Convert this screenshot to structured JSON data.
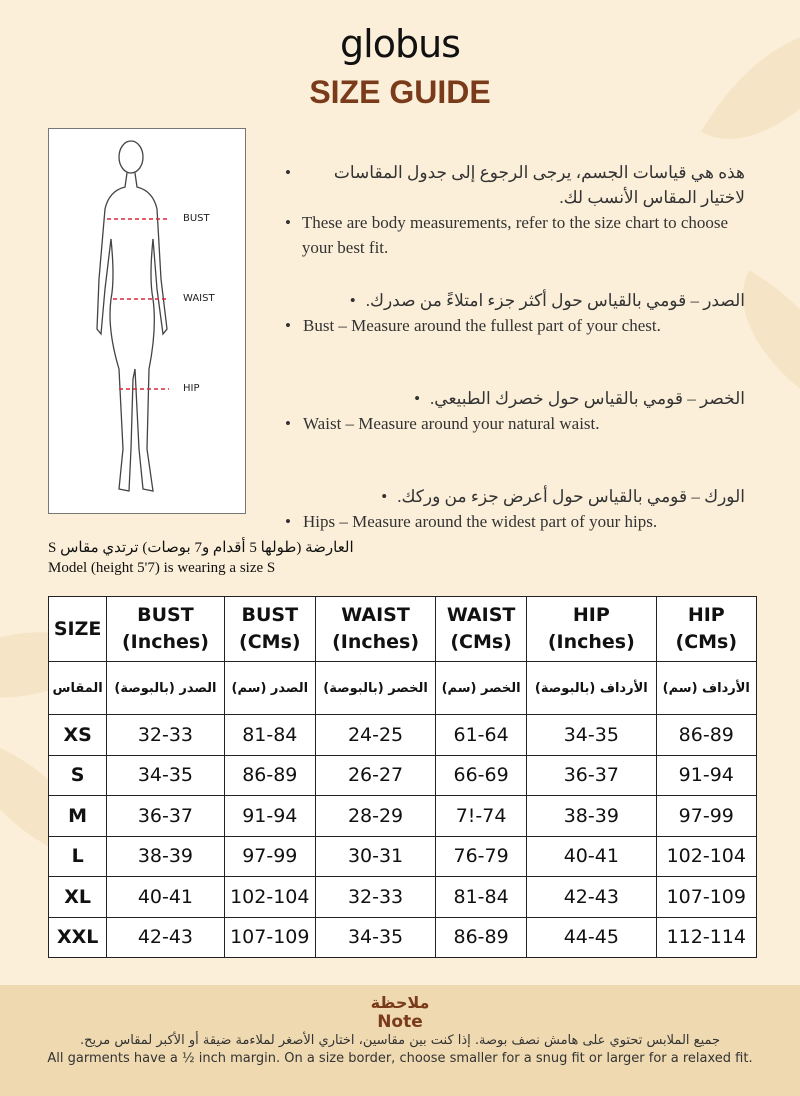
{
  "brand": "globus",
  "title": "SIZE GUIDE",
  "figure": {
    "labels": [
      "BUST",
      "WAIST",
      "HIP"
    ],
    "line_color": "#d9263b"
  },
  "bullets": [
    {
      "ar": "هذه هي قياسات الجسم، يرجى الرجوع إلى جدول المقاسات لاختيار المقاس الأنسب لك.",
      "en": "These are body measurements, refer to the size chart to choose your best fit."
    },
    {
      "ar": "الصدر – قومي بالقياس حول أكثر جزء امتلاءً من صدرك.",
      "en": "Bust – Measure around the fullest part of your chest."
    },
    {
      "ar": "الخصر – قومي بالقياس حول خصرك الطبيعي.",
      "en": "Waist – Measure around your natural waist."
    },
    {
      "ar": "الورك – قومي بالقياس حول أعرض جزء من وركك.",
      "en": "Hips – Measure around the widest part of your hips."
    }
  ],
  "model": {
    "ar": "العارضة (طولها 5 أقدام و7 بوصات) ترتدي مقاس S",
    "en": "Model (height 5'7) is wearing a size S"
  },
  "table": {
    "headers": [
      [
        "SIZE",
        ""
      ],
      [
        "BUST",
        "(Inches)"
      ],
      [
        "BUST",
        "(CMs)"
      ],
      [
        "WAIST",
        "(Inches)"
      ],
      [
        "WAIST",
        "(CMs)"
      ],
      [
        "HIP",
        "(Inches)"
      ],
      [
        "HIP",
        "(CMs)"
      ]
    ],
    "headers_ar": [
      "المقاس",
      "الصدر (بالبوصة)",
      "الصدر (سم)",
      "الخصر (بالبوصة)",
      "الخصر (سم)",
      "الأرداف (بالبوصة)",
      "الأرداف (سم)"
    ],
    "rows": [
      [
        "XS",
        "32-33",
        "81-84",
        "24-25",
        "61-64",
        "34-35",
        "86-89"
      ],
      [
        "S",
        "34-35",
        "86-89",
        "26-27",
        "66-69",
        "36-37",
        "91-94"
      ],
      [
        "M",
        "36-37",
        "91-94",
        "28-29",
        "7!-74",
        "38-39",
        "97-99"
      ],
      [
        "L",
        "38-39",
        "97-99",
        "30-31",
        "76-79",
        "40-41",
        "102-104"
      ],
      [
        "XL",
        "40-41",
        "102-104",
        "32-33",
        "81-84",
        "42-43",
        "107-109"
      ],
      [
        "XXL",
        "42-43",
        "107-109",
        "34-35",
        "86-89",
        "44-45",
        "112-114"
      ]
    ]
  },
  "note": {
    "title_ar": "ملاحظة",
    "title_en": "Note",
    "ar": "جميع الملابس تحتوي على هامش نصف بوصة. إذا كنت بين مقاسين، اختاري الأصغر لملاءمة ضيقة أو الأكبر لمقاس مريح.",
    "en": "All garments have a ½ inch margin. On a size border, choose smaller for a snug fit or larger for a relaxed fit."
  }
}
